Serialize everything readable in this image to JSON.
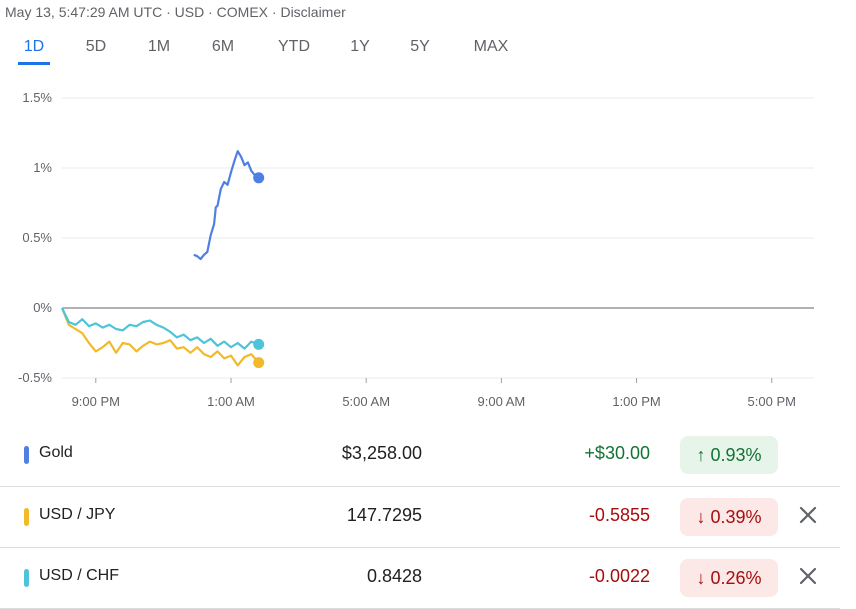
{
  "header": {
    "timestamp": "May 13, 5:47:29 AM UTC",
    "currency": "USD",
    "exchange": "COMEX",
    "disclaimer": "Disclaimer",
    "separator": " · "
  },
  "tabs": [
    {
      "label": "1D",
      "active": true
    },
    {
      "label": "5D",
      "active": false
    },
    {
      "label": "1M",
      "active": false
    },
    {
      "label": "6M",
      "active": false
    },
    {
      "label": "YTD",
      "active": false
    },
    {
      "label": "1Y",
      "active": false
    },
    {
      "label": "5Y",
      "active": false
    },
    {
      "label": "MAX",
      "active": false
    }
  ],
  "chart_data": {
    "type": "line",
    "xlabel": "",
    "ylabel": "",
    "x_unit": "hours after 8:00 PM",
    "xlim": [
      0,
      22.25
    ],
    "ylim": [
      -0.5,
      1.5
    ],
    "y_ticks": [
      1.5,
      1.0,
      0.5,
      0,
      -0.5
    ],
    "y_tick_labels": [
      "1.5%",
      "1%",
      "0.5%",
      "0%",
      "-0.5%"
    ],
    "x_ticks": [
      1,
      5,
      9,
      13,
      17,
      21
    ],
    "x_tick_labels": [
      "9:00 PM",
      "1:00 AM",
      "5:00 AM",
      "9:00 AM",
      "1:00 PM",
      "5:00 PM"
    ],
    "grid": true,
    "legend": "none",
    "series": [
      {
        "name": "Gold",
        "color": "#4f7fe3",
        "x": [
          3.9,
          4.0,
          4.1,
          4.2,
          4.3,
          4.4,
          4.5,
          4.55,
          4.6,
          4.7,
          4.8,
          4.9,
          5.0,
          5.1,
          5.2,
          5.3,
          5.4,
          5.5,
          5.6,
          5.7,
          5.82
        ],
        "y": [
          0.38,
          0.37,
          0.35,
          0.38,
          0.4,
          0.52,
          0.6,
          0.72,
          0.73,
          0.85,
          0.9,
          0.88,
          0.97,
          1.05,
          1.12,
          1.08,
          1.02,
          1.04,
          0.98,
          0.95,
          0.93
        ]
      },
      {
        "name": "USD / JPY",
        "color": "#f2b92b",
        "x": [
          0,
          0.2,
          0.4,
          0.6,
          0.8,
          1.0,
          1.2,
          1.4,
          1.6,
          1.8,
          2.0,
          2.2,
          2.4,
          2.6,
          2.8,
          3.0,
          3.2,
          3.4,
          3.6,
          3.8,
          4.0,
          4.2,
          4.4,
          4.6,
          4.8,
          5.0,
          5.2,
          5.4,
          5.6,
          5.82
        ],
        "y": [
          0.0,
          -0.12,
          -0.15,
          -0.18,
          -0.25,
          -0.31,
          -0.28,
          -0.24,
          -0.32,
          -0.25,
          -0.26,
          -0.31,
          -0.27,
          -0.24,
          -0.26,
          -0.25,
          -0.23,
          -0.29,
          -0.28,
          -0.32,
          -0.28,
          -0.33,
          -0.35,
          -0.31,
          -0.36,
          -0.34,
          -0.41,
          -0.35,
          -0.33,
          -0.39
        ]
      },
      {
        "name": "USD / CHF",
        "color": "#4fc3d9",
        "x": [
          0,
          0.2,
          0.4,
          0.6,
          0.8,
          1.0,
          1.2,
          1.4,
          1.6,
          1.8,
          2.0,
          2.2,
          2.4,
          2.6,
          2.8,
          3.0,
          3.2,
          3.4,
          3.6,
          3.8,
          4.0,
          4.2,
          4.4,
          4.6,
          4.8,
          5.0,
          5.2,
          5.4,
          5.6,
          5.82
        ],
        "y": [
          0.0,
          -0.1,
          -0.12,
          -0.08,
          -0.13,
          -0.11,
          -0.14,
          -0.12,
          -0.15,
          -0.16,
          -0.12,
          -0.13,
          -0.1,
          -0.09,
          -0.12,
          -0.14,
          -0.17,
          -0.21,
          -0.19,
          -0.23,
          -0.21,
          -0.25,
          -0.22,
          -0.27,
          -0.24,
          -0.28,
          -0.25,
          -0.29,
          -0.24,
          -0.26
        ]
      }
    ]
  },
  "rows": [
    {
      "name": "Gold",
      "price": "$3,258.00",
      "change": "+$30.00",
      "pct": "0.93%",
      "arrow": "↑",
      "color": "#4f7fe3",
      "change_color": "#137333",
      "pct_bg": "#e6f4ea",
      "removable": false
    },
    {
      "name": "USD / JPY",
      "price": "147.7295",
      "change": "-0.5855",
      "pct": "0.39%",
      "arrow": "↓",
      "color": "#f2b92b",
      "change_color": "#a50e0e",
      "pct_bg": "#fce8e6",
      "removable": true
    },
    {
      "name": "USD / CHF",
      "price": "0.8428",
      "change": "-0.0022",
      "pct": "0.26%",
      "arrow": "↓",
      "color": "#4fc3d9",
      "change_color": "#a50e0e",
      "pct_bg": "#fce8e6",
      "removable": true
    }
  ]
}
